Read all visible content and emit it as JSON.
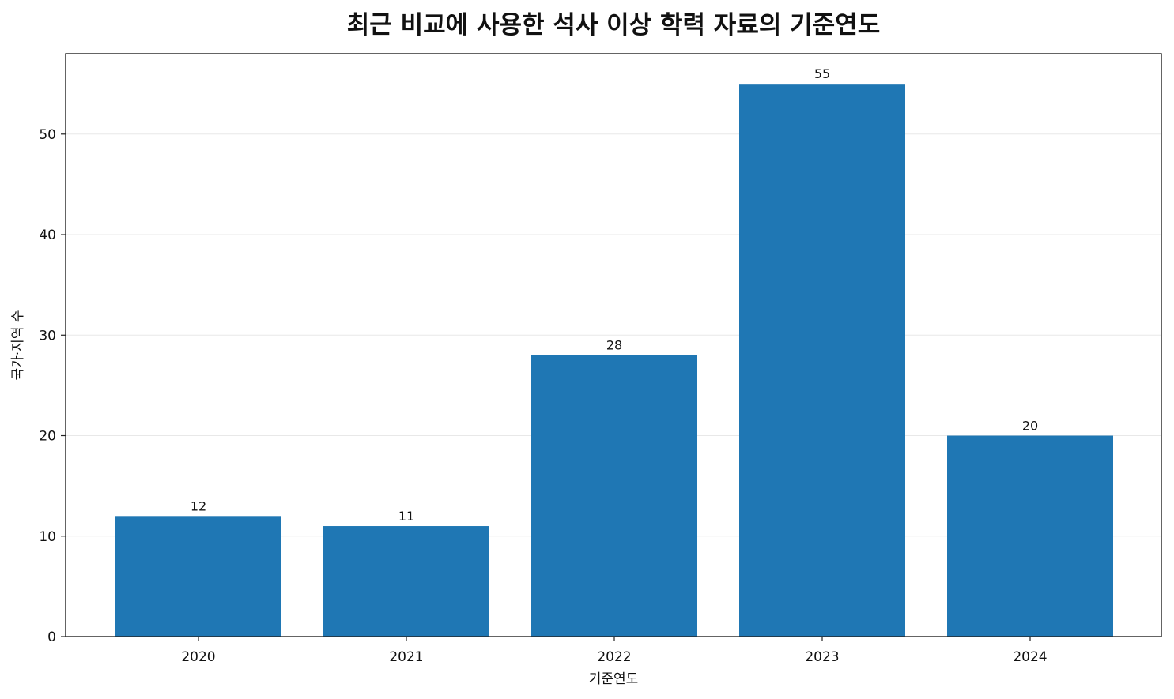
{
  "chart_data": {
    "type": "bar",
    "title": "최근 비교에 사용한 석사 이상 학력 자료의 기준연도",
    "xlabel": "기준연도",
    "ylabel": "국가·지역 수",
    "categories": [
      "2020",
      "2021",
      "2022",
      "2023",
      "2024"
    ],
    "values": [
      12,
      11,
      28,
      55,
      20
    ],
    "data_labels": [
      "12",
      "11",
      "28",
      "55",
      "20"
    ],
    "ylim": [
      0,
      58
    ],
    "yticks": [
      0,
      10,
      20,
      30,
      40,
      50
    ],
    "grid": "horizontal",
    "bar_color": "#1f77b4"
  }
}
